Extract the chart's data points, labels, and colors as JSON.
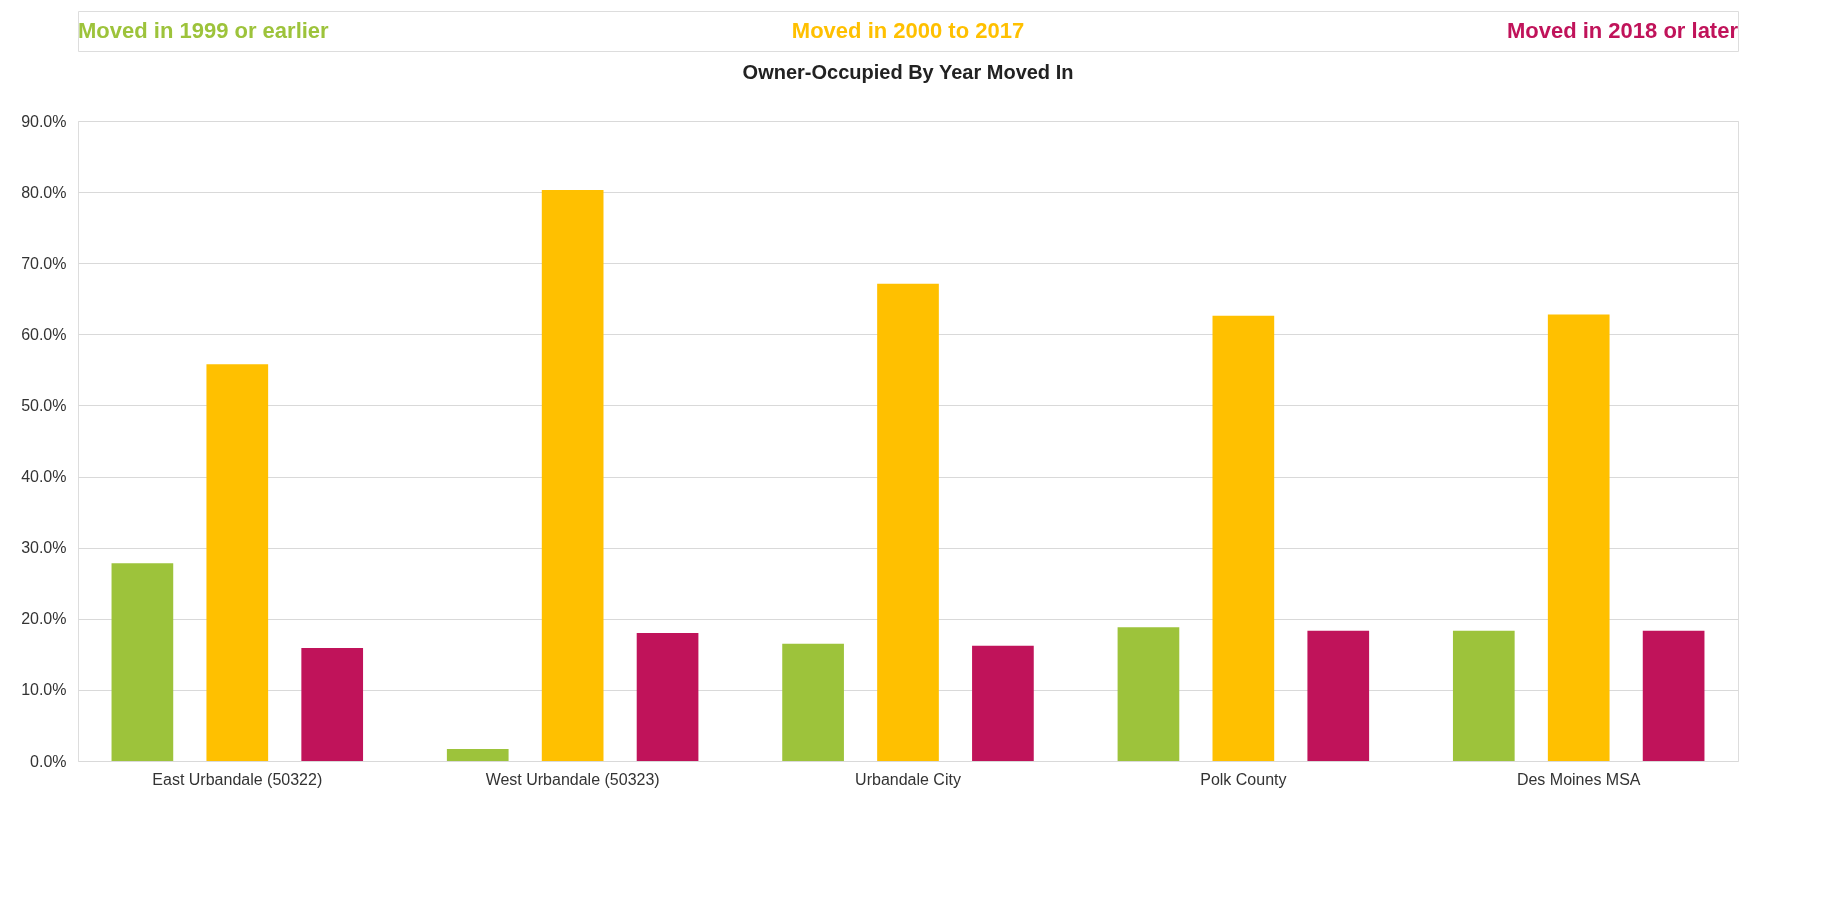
{
  "chart_data": {
    "type": "bar",
    "title": "Owner-Occupied By Year Moved In",
    "categories": [
      "East Urbandale (50322)",
      "West Urbandale (50323)",
      "Urbandale City",
      "Polk County",
      "Des Moines MSA"
    ],
    "series": [
      {
        "name": "Moved in 1999 or earlier",
        "color": "#9dc33b",
        "values": [
          27.8,
          1.7,
          16.5,
          18.8,
          18.3
        ]
      },
      {
        "name": "Moved in 2000 to 2017",
        "color": "#ffc000",
        "values": [
          55.8,
          80.3,
          67.1,
          62.6,
          62.8
        ]
      },
      {
        "name": "Moved in 2018 or later",
        "color": "#c0135a",
        "values": [
          15.9,
          18.0,
          16.2,
          18.3,
          18.3
        ]
      }
    ],
    "ylim": [
      0,
      90
    ],
    "yticks": [
      {
        "value": 0,
        "label": "0.0%"
      },
      {
        "value": 10,
        "label": "10.0%"
      },
      {
        "value": 20,
        "label": "20.0%"
      },
      {
        "value": 30,
        "label": "30.0%"
      },
      {
        "value": 40,
        "label": "40.0%"
      },
      {
        "value": 50,
        "label": "50.0%"
      },
      {
        "value": 60,
        "label": "60.0%"
      },
      {
        "value": 70,
        "label": "70.0%"
      },
      {
        "value": 80,
        "label": "80.0%"
      },
      {
        "value": 90,
        "label": "90.0%"
      }
    ],
    "grid": "y",
    "legend": "top"
  }
}
